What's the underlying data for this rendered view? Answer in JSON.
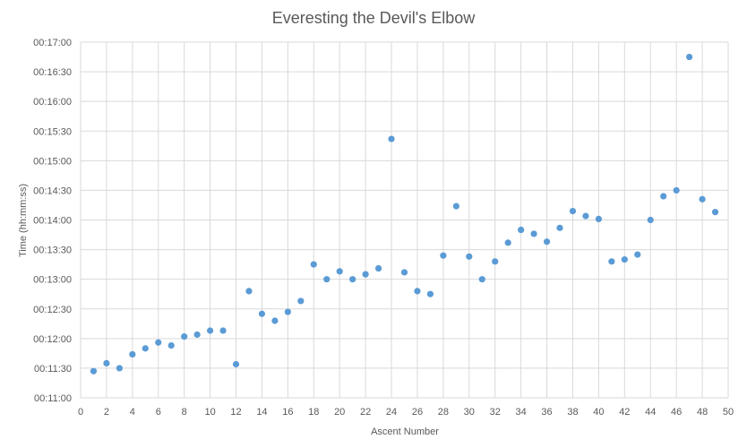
{
  "chart_data": {
    "type": "scatter",
    "title": "Everesting the Devil's Elbow",
    "xlabel": "Ascent Number",
    "ylabel": "Time (hh:mm:ss)",
    "xlim": [
      0,
      50
    ],
    "ylim": [
      "00:11:00",
      "00:17:00"
    ],
    "x_ticks": [
      "0",
      "2",
      "4",
      "6",
      "8",
      "10",
      "12",
      "14",
      "16",
      "18",
      "20",
      "22",
      "24",
      "26",
      "28",
      "30",
      "32",
      "34",
      "36",
      "38",
      "40",
      "42",
      "44",
      "46",
      "48",
      "50"
    ],
    "y_ticks": [
      "00:11:00",
      "00:11:30",
      "00:12:00",
      "00:12:30",
      "00:13:00",
      "00:13:30",
      "00:14:00",
      "00:14:30",
      "00:15:00",
      "00:15:30",
      "00:16:00",
      "00:16:30",
      "00:17:00"
    ],
    "grid": true,
    "marker_color": "#5b9bd5",
    "x": [
      1,
      2,
      3,
      4,
      5,
      6,
      7,
      8,
      9,
      10,
      11,
      12,
      13,
      14,
      15,
      16,
      17,
      18,
      19,
      20,
      21,
      22,
      23,
      24,
      25,
      26,
      27,
      28,
      29,
      30,
      31,
      32,
      33,
      34,
      35,
      36,
      37,
      38,
      39,
      40,
      41,
      42,
      43,
      44,
      45,
      46,
      47,
      48,
      49
    ],
    "y": [
      "00:11:27",
      "00:11:35",
      "00:11:30",
      "00:11:44",
      "00:11:50",
      "00:11:56",
      "00:11:53",
      "00:12:02",
      "00:12:04",
      "00:12:08",
      "00:12:08",
      "00:11:34",
      "00:12:48",
      "00:12:25",
      "00:12:18",
      "00:12:27",
      "00:12:38",
      "00:13:15",
      "00:13:00",
      "00:13:08",
      "00:13:00",
      "00:13:05",
      "00:13:11",
      "00:15:22",
      "00:13:07",
      "00:12:48",
      "00:12:45",
      "00:13:24",
      "00:14:14",
      "00:13:23",
      "00:13:00",
      "00:13:18",
      "00:13:37",
      "00:13:50",
      "00:13:46",
      "00:13:38",
      "00:13:52",
      "00:14:09",
      "00:14:04",
      "00:14:01",
      "00:13:18",
      "00:13:20",
      "00:13:25",
      "00:14:00",
      "00:14:24",
      "00:14:30",
      "00:16:45",
      "00:14:21",
      "00:14:08"
    ]
  }
}
